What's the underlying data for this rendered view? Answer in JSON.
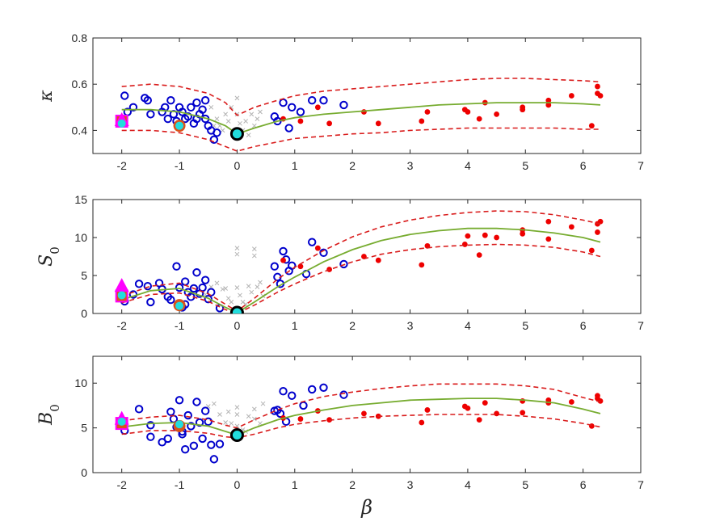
{
  "chart_data": [
    {
      "type": "scatter",
      "ylabel": "κ",
      "xlabel": "",
      "xlim": [
        -2.5,
        7
      ],
      "ylim": [
        0.3,
        0.8
      ],
      "xticks": [
        "-2",
        "-1",
        "0",
        "1",
        "2",
        "3",
        "4",
        "5",
        "6",
        "7"
      ],
      "yticks": [
        "0.4",
        "0.6",
        "0.8"
      ],
      "ytick_values": [
        0.4,
        0.6,
        0.8
      ],
      "fit": {
        "x": [
          -2,
          -1.5,
          -1,
          -0.5,
          -0.2,
          0,
          0.3,
          0.7,
          1,
          1.5,
          2,
          2.5,
          3,
          3.5,
          4,
          4.5,
          5,
          5.5,
          6,
          6.3
        ],
        "center": [
          0.49,
          0.49,
          0.48,
          0.45,
          0.42,
          0.385,
          0.41,
          0.44,
          0.455,
          0.47,
          0.48,
          0.49,
          0.5,
          0.51,
          0.515,
          0.52,
          0.52,
          0.52,
          0.515,
          0.51
        ],
        "upper": [
          0.59,
          0.6,
          0.59,
          0.56,
          0.52,
          0.465,
          0.5,
          0.53,
          0.55,
          0.57,
          0.58,
          0.59,
          0.6,
          0.61,
          0.62,
          0.625,
          0.625,
          0.62,
          0.615,
          0.61
        ],
        "lower": [
          0.4,
          0.4,
          0.39,
          0.36,
          0.33,
          0.31,
          0.33,
          0.35,
          0.365,
          0.375,
          0.385,
          0.39,
          0.4,
          0.405,
          0.41,
          0.41,
          0.41,
          0.41,
          0.405,
          0.405
        ]
      },
      "grey_x": [
        [
          -0.45,
          0.5
        ],
        [
          -0.35,
          0.45
        ],
        [
          -0.3,
          0.42
        ],
        [
          -0.2,
          0.47
        ],
        [
          -0.15,
          0.44
        ],
        [
          -0.1,
          0.5
        ],
        [
          0,
          0.54
        ],
        [
          0,
          0.47
        ],
        [
          0.05,
          0.43
        ],
        [
          0.1,
          0.4
        ],
        [
          0.15,
          0.44
        ],
        [
          0.2,
          0.38
        ],
        [
          0.25,
          0.47
        ],
        [
          0.3,
          0.42
        ],
        [
          0.35,
          0.45
        ],
        [
          -0.25,
          0.4
        ],
        [
          0.4,
          0.48
        ],
        [
          -0.4,
          0.42
        ]
      ],
      "blue_circles": [
        [
          -1.95,
          0.55
        ],
        [
          -1.9,
          0.48
        ],
        [
          -1.8,
          0.5
        ],
        [
          -1.6,
          0.54
        ],
        [
          -1.55,
          0.53
        ],
        [
          -1.5,
          0.47
        ],
        [
          -1.3,
          0.48
        ],
        [
          -1.25,
          0.5
        ],
        [
          -1.2,
          0.45
        ],
        [
          -1.15,
          0.53
        ],
        [
          -1.1,
          0.47
        ],
        [
          -1.05,
          0.44
        ],
        [
          -1,
          0.5
        ],
        [
          -0.95,
          0.48
        ],
        [
          -0.9,
          0.45
        ],
        [
          -0.85,
          0.46
        ],
        [
          -0.8,
          0.5
        ],
        [
          -0.75,
          0.43
        ],
        [
          -0.7,
          0.52
        ],
        [
          -0.65,
          0.47
        ],
        [
          -0.6,
          0.49
        ],
        [
          -0.55,
          0.45
        ],
        [
          -0.5,
          0.42
        ],
        [
          -0.45,
          0.4
        ],
        [
          -0.4,
          0.36
        ],
        [
          -0.35,
          0.39
        ],
        [
          -0.55,
          0.53
        ],
        [
          -0.7,
          0.45
        ],
        [
          0.65,
          0.46
        ],
        [
          0.7,
          0.44
        ],
        [
          0.8,
          0.52
        ],
        [
          0.9,
          0.41
        ],
        [
          0.95,
          0.5
        ],
        [
          1.1,
          0.48
        ],
        [
          1.3,
          0.53
        ],
        [
          1.5,
          0.53
        ],
        [
          1.85,
          0.51
        ]
      ],
      "red_dots": [
        [
          0.8,
          0.45
        ],
        [
          1.1,
          0.44
        ],
        [
          1.4,
          0.5
        ],
        [
          1.6,
          0.43
        ],
        [
          2.2,
          0.48
        ],
        [
          2.45,
          0.43
        ],
        [
          3.2,
          0.44
        ],
        [
          3.3,
          0.48
        ],
        [
          3.95,
          0.49
        ],
        [
          4,
          0.48
        ],
        [
          4.2,
          0.45
        ],
        [
          4.3,
          0.52
        ],
        [
          4.5,
          0.47
        ],
        [
          4.95,
          0.5
        ],
        [
          4.95,
          0.49
        ],
        [
          5.4,
          0.51
        ],
        [
          5.4,
          0.53
        ],
        [
          5.8,
          0.55
        ],
        [
          6.15,
          0.42
        ],
        [
          6.25,
          0.59
        ],
        [
          6.25,
          0.56
        ],
        [
          6.3,
          0.55
        ]
      ],
      "specials": {
        "magenta_square": [
          -2,
          0.44
        ],
        "magenta_triangle": [
          -2,
          0.44
        ],
        "cyan_dot": [
          -2,
          0.43
        ],
        "orange_circle": [
          -1,
          0.42
        ],
        "cyan_dot_2": [
          -1,
          0.42
        ],
        "black_circle": [
          0,
          0.385
        ],
        "cyan_dot_3": [
          0,
          0.385
        ]
      }
    },
    {
      "type": "scatter",
      "ylabel": "S0",
      "xlabel": "",
      "xlim": [
        -2.5,
        7
      ],
      "ylim": [
        0,
        15
      ],
      "xticks": [
        "-2",
        "-1",
        "0",
        "1",
        "2",
        "3",
        "4",
        "5",
        "6",
        "7"
      ],
      "yticks": [
        "0",
        "5",
        "10",
        "15"
      ],
      "ytick_values": [
        0,
        5,
        10,
        15
      ],
      "fit": {
        "x": [
          -2,
          -1.5,
          -1,
          -0.5,
          -0.2,
          0,
          0.3,
          0.7,
          1,
          1.5,
          2,
          2.5,
          3,
          3.5,
          4,
          4.5,
          5,
          5.5,
          6,
          6.3
        ],
        "center": [
          1.8,
          3,
          3.3,
          2,
          0.8,
          0.1,
          1.5,
          3.5,
          4.8,
          6.8,
          8.4,
          9.6,
          10.4,
          10.9,
          11.2,
          11.2,
          11,
          10.6,
          10,
          9.4
        ],
        "upper": [
          2.3,
          3.6,
          4,
          2.6,
          1.2,
          0.3,
          2,
          4.5,
          6.1,
          8.3,
          10.1,
          11.4,
          12.3,
          12.9,
          13.3,
          13.5,
          13.4,
          13,
          12.3,
          11.8
        ],
        "lower": [
          1.4,
          2.5,
          2.7,
          1.6,
          0.5,
          0,
          1.1,
          2.8,
          3.9,
          5.5,
          6.8,
          7.8,
          8.4,
          8.8,
          9,
          9.1,
          9,
          8.7,
          8.1,
          7.5
        ]
      },
      "grey_x": [
        [
          -0.55,
          2.5
        ],
        [
          -0.45,
          3.5
        ],
        [
          -0.35,
          4
        ],
        [
          -0.25,
          3.2
        ],
        [
          -0.15,
          2
        ],
        [
          -0.1,
          1.5
        ],
        [
          0,
          8.6
        ],
        [
          0,
          7.8
        ],
        [
          0,
          3.4
        ],
        [
          0.05,
          2.4
        ],
        [
          0.1,
          1.5
        ],
        [
          0.15,
          1.2
        ],
        [
          0.25,
          2.8
        ],
        [
          0.3,
          8.5
        ],
        [
          0.3,
          7.6
        ],
        [
          0.35,
          3.5
        ],
        [
          0.4,
          4.1
        ],
        [
          0.45,
          2.3
        ],
        [
          -0.2,
          3.3
        ],
        [
          0.2,
          3.6
        ]
      ],
      "blue_circles": [
        [
          -1.95,
          1.6
        ],
        [
          -1.8,
          2.5
        ],
        [
          -1.7,
          3.9
        ],
        [
          -1.55,
          3.6
        ],
        [
          -1.5,
          1.5
        ],
        [
          -1.35,
          4
        ],
        [
          -1.3,
          3.2
        ],
        [
          -1.2,
          2.2
        ],
        [
          -1.15,
          1.8
        ],
        [
          -1.05,
          6.2
        ],
        [
          -1,
          3.4
        ],
        [
          -0.95,
          0.8
        ],
        [
          -0.9,
          4.2
        ],
        [
          -0.85,
          2.8
        ],
        [
          -0.8,
          2.2
        ],
        [
          -0.75,
          3.3
        ],
        [
          -0.7,
          5.4
        ],
        [
          -0.65,
          2.6
        ],
        [
          -0.6,
          3.4
        ],
        [
          -0.55,
          4.4
        ],
        [
          -0.5,
          1.9
        ],
        [
          -0.45,
          2.8
        ],
        [
          -0.3,
          0.7
        ],
        [
          -0.9,
          1.2
        ],
        [
          0.65,
          6.2
        ],
        [
          0.7,
          4.8
        ],
        [
          0.75,
          3.9
        ],
        [
          0.8,
          8.2
        ],
        [
          0.85,
          7.1
        ],
        [
          0.9,
          5.6
        ],
        [
          0.95,
          6.3
        ],
        [
          1.2,
          5.2
        ],
        [
          1.3,
          9.4
        ],
        [
          1.5,
          8
        ],
        [
          1.85,
          6.5
        ]
      ],
      "red_dots": [
        [
          0.8,
          7
        ],
        [
          1.1,
          6.2
        ],
        [
          1.4,
          8.6
        ],
        [
          1.6,
          5.8
        ],
        [
          2.2,
          7.5
        ],
        [
          2.45,
          7
        ],
        [
          3.2,
          6.4
        ],
        [
          3.3,
          8.9
        ],
        [
          3.95,
          9.1
        ],
        [
          4,
          10.2
        ],
        [
          4.2,
          7.7
        ],
        [
          4.3,
          10.3
        ],
        [
          4.5,
          10
        ],
        [
          4.95,
          10.5
        ],
        [
          4.95,
          11
        ],
        [
          5.4,
          9.8
        ],
        [
          5.4,
          12.1
        ],
        [
          5.8,
          11.4
        ],
        [
          6.15,
          8.3
        ],
        [
          6.25,
          11.8
        ],
        [
          6.25,
          10.7
        ],
        [
          6.3,
          12.1
        ]
      ],
      "specials": {
        "magenta_square": [
          -2,
          2.3
        ],
        "magenta_triangle": [
          -2,
          3.5
        ],
        "cyan_dot": [
          -2,
          2.4
        ],
        "orange_circle": [
          -1,
          1.1
        ],
        "cyan_dot_2": [
          -1,
          1
        ],
        "black_circle": [
          0,
          0.1
        ],
        "cyan_dot_3": [
          0,
          0.1
        ]
      }
    },
    {
      "type": "scatter",
      "ylabel": "B0",
      "xlabel": "β",
      "xlim": [
        -2.5,
        7
      ],
      "ylim": [
        0,
        13
      ],
      "xticks": [
        "-2",
        "-1",
        "0",
        "1",
        "2",
        "3",
        "4",
        "5",
        "6",
        "7"
      ],
      "yticks": [
        "0",
        "5",
        "10"
      ],
      "ytick_values": [
        0,
        5,
        10
      ],
      "fit": {
        "x": [
          -2,
          -1.5,
          -1,
          -0.5,
          -0.2,
          0,
          0.3,
          0.7,
          1,
          1.5,
          2,
          2.5,
          3,
          3.5,
          4,
          4.5,
          5,
          5.5,
          6,
          6.3
        ],
        "center": [
          5.1,
          5.5,
          5.6,
          5.2,
          4.6,
          4.2,
          5,
          5.9,
          6.4,
          7,
          7.5,
          7.8,
          8.1,
          8.2,
          8.3,
          8.3,
          8.1,
          7.8,
          7.1,
          6.6
        ],
        "upper": [
          5.8,
          6.2,
          6.4,
          5.9,
          5.3,
          5,
          5.9,
          7,
          7.7,
          8.5,
          9,
          9.4,
          9.7,
          9.9,
          9.9,
          9.9,
          9.7,
          9.3,
          8.4,
          7.9
        ],
        "lower": [
          4.3,
          4.7,
          4.7,
          4.4,
          4,
          3.9,
          4.3,
          5,
          5.4,
          5.8,
          6.1,
          6.3,
          6.4,
          6.5,
          6.5,
          6.5,
          6.3,
          6,
          5.5,
          5.1
        ]
      },
      "grey_x": [
        [
          -0.5,
          7.4
        ],
        [
          -0.4,
          7.7
        ],
        [
          -0.3,
          6.5
        ],
        [
          -0.2,
          5.6
        ],
        [
          -0.1,
          5.5
        ],
        [
          0,
          7.3
        ],
        [
          0,
          6.5
        ],
        [
          0,
          5.2
        ],
        [
          0.1,
          4.8
        ],
        [
          0.2,
          6.3
        ],
        [
          0.3,
          7.1
        ],
        [
          0.3,
          6
        ],
        [
          0.4,
          5.5
        ],
        [
          0.45,
          7.7
        ],
        [
          -0.15,
          6.8
        ],
        [
          0.15,
          4.6
        ]
      ],
      "blue_circles": [
        [
          -1.95,
          4.7
        ],
        [
          -1.7,
          7.1
        ],
        [
          -1.5,
          5.3
        ],
        [
          -1.5,
          4
        ],
        [
          -1.3,
          3.4
        ],
        [
          -1.2,
          3.8
        ],
        [
          -1.15,
          6.8
        ],
        [
          -1.1,
          6
        ],
        [
          -1.05,
          5.1
        ],
        [
          -1,
          8.1
        ],
        [
          -0.95,
          4.6
        ],
        [
          -0.9,
          2.6
        ],
        [
          -0.85,
          6.4
        ],
        [
          -0.8,
          5.2
        ],
        [
          -0.75,
          3
        ],
        [
          -0.7,
          7.9
        ],
        [
          -0.65,
          5.6
        ],
        [
          -0.6,
          3.8
        ],
        [
          -0.55,
          6.9
        ],
        [
          -0.5,
          5.7
        ],
        [
          -0.45,
          3.1
        ],
        [
          -0.4,
          1.5
        ],
        [
          -0.3,
          3.2
        ],
        [
          -0.95,
          4.3
        ],
        [
          0.65,
          6.9
        ],
        [
          0.7,
          7
        ],
        [
          0.75,
          6.6
        ],
        [
          0.8,
          9.1
        ],
        [
          0.85,
          5.7
        ],
        [
          0.95,
          8.6
        ],
        [
          1.15,
          7.5
        ],
        [
          1.3,
          9.3
        ],
        [
          1.5,
          9.5
        ],
        [
          1.85,
          8.7
        ]
      ],
      "red_dots": [
        [
          0.8,
          6.1
        ],
        [
          1.1,
          6
        ],
        [
          1.4,
          6.9
        ],
        [
          1.6,
          5.9
        ],
        [
          2.2,
          6.6
        ],
        [
          2.45,
          6.3
        ],
        [
          3.2,
          5.6
        ],
        [
          3.3,
          7
        ],
        [
          3.95,
          7.4
        ],
        [
          4,
          7.2
        ],
        [
          4.2,
          5.9
        ],
        [
          4.3,
          7.8
        ],
        [
          4.5,
          6.6
        ],
        [
          4.95,
          6.7
        ],
        [
          4.95,
          8
        ],
        [
          5.4,
          7.8
        ],
        [
          5.4,
          8.1
        ],
        [
          5.8,
          7.9
        ],
        [
          6.15,
          5.2
        ],
        [
          6.25,
          8.6
        ],
        [
          6.25,
          8.3
        ],
        [
          6.3,
          8
        ]
      ],
      "specials": {
        "magenta_square": [
          -2,
          5.5
        ],
        "magenta_triangle": [
          -2,
          5.9
        ],
        "cyan_dot": [
          -2,
          5.7
        ],
        "orange_circle": [
          -1,
          5.2
        ],
        "cyan_dot_2": [
          -1,
          5.4
        ],
        "black_circle": [
          0,
          4.2
        ],
        "cyan_dot_3": [
          0,
          4.2
        ]
      }
    }
  ],
  "colors": {
    "fit": "#77ac30",
    "band": "#d91c1c",
    "blue": "#0000cc",
    "red": "#ee0000",
    "grey": "#b3b3b3",
    "magenta": "#ff00ff",
    "cyan": "#22dddd",
    "orange": "#d95319",
    "black": "#000000"
  }
}
